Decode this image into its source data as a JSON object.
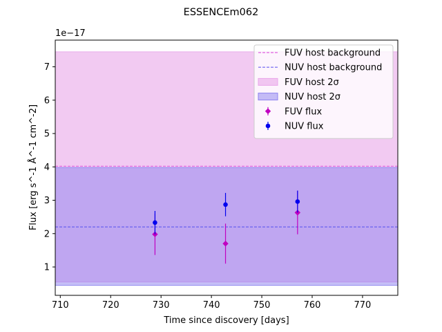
{
  "chart_data": {
    "type": "scatter",
    "title": "ESSENCEm062",
    "xlabel": "Time since discovery [days]",
    "ylabel": "Flux [erg s^-1 Å^-1 cm^-2]",
    "y_offset_label": "1e−17",
    "xlim": [
      709,
      777
    ],
    "ylim": [
      0.15,
      7.8
    ],
    "x_ticks": [
      710,
      720,
      730,
      740,
      750,
      760,
      770
    ],
    "y_ticks": [
      1,
      2,
      3,
      4,
      5,
      6,
      7
    ],
    "grid": false,
    "legend_position": "top-right",
    "bands": [
      {
        "name": "FUV host 2σ",
        "y0": 0.55,
        "y1": 7.45,
        "fill": "#e9a6ea",
        "opacity": 0.6
      },
      {
        "name": "NUV host 2σ",
        "y0": 0.45,
        "y1": 3.98,
        "fill": "#8c82f0",
        "opacity": 0.5
      }
    ],
    "lines": [
      {
        "name": "FUV host background",
        "y": 4.02,
        "color": "#e060e0"
      },
      {
        "name": "NUV host background",
        "y": 2.2,
        "color": "#6a60f0"
      }
    ],
    "series": [
      {
        "name": "FUV flux",
        "marker": "diamond",
        "color": "#c000c0",
        "x": [
          728.8,
          742.8,
          757.1
        ],
        "y": [
          1.98,
          1.7,
          2.63
        ],
        "yerr": [
          0.62,
          0.6,
          0.65
        ]
      },
      {
        "name": "NUV flux",
        "marker": "circle",
        "color": "#0000ee",
        "x": [
          728.8,
          742.8,
          757.1
        ],
        "y": [
          2.33,
          2.87,
          2.96
        ],
        "yerr": [
          0.35,
          0.35,
          0.33
        ]
      }
    ],
    "legend": [
      {
        "label": "FUV host background",
        "kind": "line",
        "ref": "FUV host background"
      },
      {
        "label": "NUV host background",
        "kind": "line",
        "ref": "NUV host background"
      },
      {
        "label": "FUV host 2σ",
        "kind": "band",
        "ref": "FUV host 2σ"
      },
      {
        "label": "NUV host 2σ",
        "kind": "band",
        "ref": "NUV host 2σ"
      },
      {
        "label": "FUV flux",
        "kind": "marker",
        "ref": "FUV flux"
      },
      {
        "label": "NUV flux",
        "kind": "marker",
        "ref": "NUV flux"
      }
    ]
  }
}
